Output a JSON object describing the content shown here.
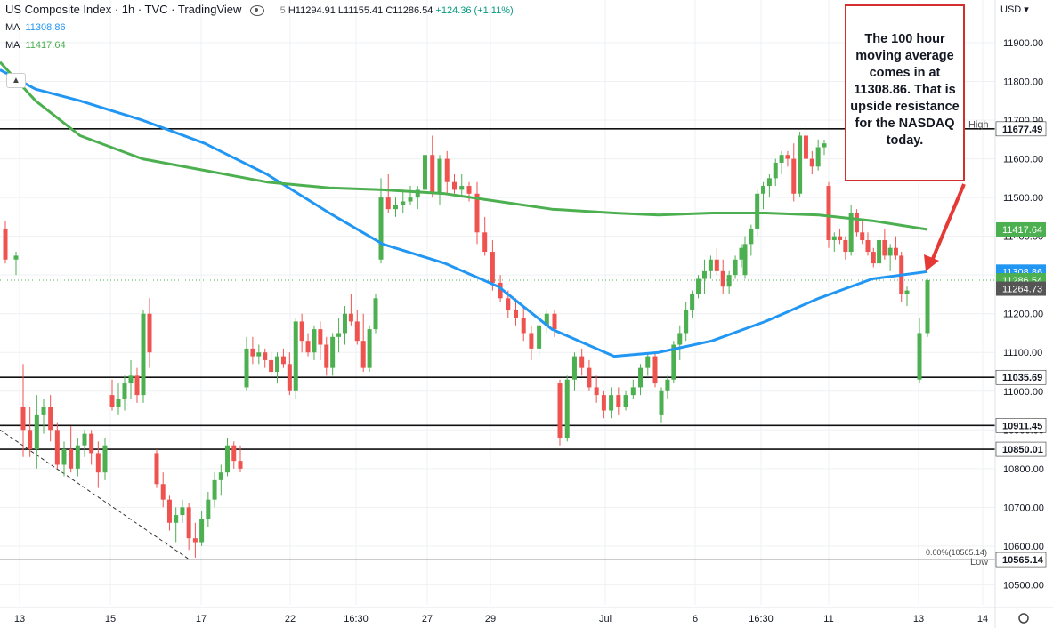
{
  "header": {
    "symbol": "US Composite Index · 1h · TVC · TradingView",
    "ohlc": "H11294.91 L11155.41 C11286.54",
    "change": "+124.36 (+1.11%)",
    "open_fragment": "5"
  },
  "indicators": [
    {
      "label": "MA",
      "value": "11308.86",
      "color": "#2196f3"
    },
    {
      "label": "MA",
      "value": "11417.64",
      "color": "#4caf50"
    }
  ],
  "currency": "USD",
  "annotation": "The 100 hour moving average comes in at 11308.86. That is upside resistance for the NASDAQ today.",
  "colors": {
    "up": "#4caf50",
    "down": "#ef5350",
    "ma100": "#2196f3",
    "ma200": "#4caf50",
    "arrow": "#e53935"
  },
  "chart_data": {
    "type": "candlestick",
    "title": "US Composite Index · 1h · TVC",
    "ylim": [
      10460,
      12000
    ],
    "y_ticks": [
      "10500.00",
      "10600.00",
      "10700.00",
      "10800.00",
      "10900.00",
      "11000.00",
      "11100.00",
      "11200.00",
      "11300.00",
      "11400.00",
      "11500.00",
      "11600.00",
      "11700.00",
      "11800.00",
      "11900.00"
    ],
    "x_ticks": [
      "13",
      "15",
      "17",
      "22",
      "16:30",
      "27",
      "29",
      "Jul",
      "6",
      "16:30",
      "11",
      "13",
      "14"
    ],
    "horizontal_levels": [
      {
        "value": 11677.49,
        "label": "11677.49"
      },
      {
        "value": 11035.69,
        "label": "11035.69"
      },
      {
        "value": 10911.45,
        "label": "10911.45"
      },
      {
        "value": 10850.01,
        "label": "10850.01"
      },
      {
        "value": 10565.14,
        "label": "10565.14"
      }
    ],
    "price_badges": [
      {
        "value": 11417.64,
        "label": "11417.64",
        "color": "#4caf50"
      },
      {
        "value": 11308.86,
        "label": "11308.86",
        "color": "#2196f3"
      },
      {
        "value": 11286.54,
        "label": "11286.54",
        "color": "#4caf50"
      },
      {
        "value": 11264.73,
        "label": "11264.73",
        "color": "#555555"
      }
    ],
    "high": {
      "label": "High",
      "value": "11689.70"
    },
    "low": {
      "label": "Low",
      "value": "10565.14"
    },
    "fib_label": "0.00%(10565.14)",
    "series": [
      {
        "name": "MA",
        "period_label": "100 hour moving average",
        "values": [
          11830,
          11780,
          11750,
          11700,
          11640,
          11560,
          11460,
          11380,
          11330,
          11270,
          11160,
          11090,
          11100,
          11130,
          11180,
          11240,
          11290,
          11308.86
        ]
      },
      {
        "name": "MA",
        "values": [
          11850,
          11750,
          11660,
          11600,
          11570,
          11540,
          11525,
          11520,
          11510,
          11490,
          11470,
          11460,
          11455,
          11460,
          11460,
          11455,
          11440,
          11417.64
        ]
      }
    ],
    "candles": [
      [
        11420,
        11440,
        11330,
        11340
      ],
      [
        11340,
        11360,
        11300,
        11350
      ],
      [
        10960,
        11070,
        10830,
        10900
      ],
      [
        10900,
        10960,
        10830,
        10850
      ],
      [
        10850,
        10990,
        10800,
        10940
      ],
      [
        10940,
        10980,
        10890,
        10960
      ],
      [
        10960,
        10990,
        10870,
        10900
      ],
      [
        10900,
        10920,
        10800,
        10810
      ],
      [
        10810,
        10870,
        10780,
        10850
      ],
      [
        10850,
        10910,
        10790,
        10800
      ],
      [
        10800,
        10880,
        10780,
        10860
      ],
      [
        10860,
        10900,
        10830,
        10890
      ],
      [
        10890,
        10900,
        10810,
        10840
      ],
      [
        10840,
        10870,
        10750,
        10790
      ],
      [
        10790,
        10880,
        10770,
        10860
      ],
      [
        10990,
        11030,
        10950,
        10960
      ],
      [
        10960,
        11020,
        10940,
        10980
      ],
      [
        10980,
        11040,
        10950,
        11020
      ],
      [
        11020,
        11080,
        10980,
        11040
      ],
      [
        11040,
        11060,
        10970,
        10990
      ],
      [
        10990,
        11210,
        10970,
        11200
      ],
      [
        11200,
        11240,
        11060,
        11100
      ],
      [
        10840,
        10850,
        10750,
        10760
      ],
      [
        10760,
        10790,
        10700,
        10720
      ],
      [
        10720,
        10730,
        10640,
        10660
      ],
      [
        10660,
        10700,
        10610,
        10680
      ],
      [
        10680,
        10720,
        10660,
        10700
      ],
      [
        10700,
        10710,
        10590,
        10620
      ],
      [
        10620,
        10660,
        10570,
        10610
      ],
      [
        10610,
        10690,
        10600,
        10670
      ],
      [
        10670,
        10740,
        10650,
        10720
      ],
      [
        10720,
        10790,
        10700,
        10770
      ],
      [
        10770,
        10810,
        10730,
        10790
      ],
      [
        10790,
        10880,
        10780,
        10860
      ],
      [
        10860,
        10870,
        10800,
        10820
      ],
      [
        10820,
        10860,
        10790,
        10800
      ],
      [
        11010,
        11140,
        11000,
        11110
      ],
      [
        11110,
        11140,
        11070,
        11090
      ],
      [
        11090,
        11120,
        11070,
        11100
      ],
      [
        11100,
        11110,
        11060,
        11080
      ],
      [
        11080,
        11100,
        11040,
        11050
      ],
      [
        11050,
        11100,
        11020,
        11090
      ],
      [
        11090,
        11110,
        11060,
        11070
      ],
      [
        11070,
        11100,
        10990,
        11000
      ],
      [
        11000,
        11190,
        10980,
        11180
      ],
      [
        11180,
        11200,
        11100,
        11130
      ],
      [
        11130,
        11150,
        11090,
        11100
      ],
      [
        11100,
        11170,
        11080,
        11160
      ],
      [
        11160,
        11180,
        11080,
        11120
      ],
      [
        11120,
        11140,
        11040,
        11060
      ],
      [
        11060,
        11150,
        11040,
        11140
      ],
      [
        11140,
        11190,
        11100,
        11150
      ],
      [
        11150,
        11220,
        11120,
        11200
      ],
      [
        11200,
        11250,
        11170,
        11180
      ],
      [
        11180,
        11210,
        11120,
        11130
      ],
      [
        11130,
        11200,
        11050,
        11060
      ],
      [
        11060,
        11170,
        11050,
        11160
      ],
      [
        11160,
        11250,
        11150,
        11240
      ],
      [
        11340,
        11550,
        11330,
        11500
      ],
      [
        11500,
        11560,
        11460,
        11470
      ],
      [
        11470,
        11500,
        11450,
        11480
      ],
      [
        11480,
        11520,
        11460,
        11490
      ],
      [
        11490,
        11530,
        11480,
        11500
      ],
      [
        11500,
        11530,
        11470,
        11520
      ],
      [
        11520,
        11640,
        11500,
        11610
      ],
      [
        11610,
        11660,
        11500,
        11510
      ],
      [
        11510,
        11610,
        11480,
        11600
      ],
      [
        11600,
        11620,
        11510,
        11540
      ],
      [
        11540,
        11560,
        11510,
        11520
      ],
      [
        11520,
        11560,
        11500,
        11530
      ],
      [
        11530,
        11540,
        11490,
        11510
      ],
      [
        11510,
        11540,
        11380,
        11410
      ],
      [
        11410,
        11450,
        11350,
        11360
      ],
      [
        11360,
        11390,
        11260,
        11280
      ],
      [
        11280,
        11300,
        11230,
        11240
      ],
      [
        11240,
        11260,
        11190,
        11210
      ],
      [
        11210,
        11240,
        11170,
        11190
      ],
      [
        11190,
        11220,
        11130,
        11150
      ],
      [
        11150,
        11170,
        11080,
        11110
      ],
      [
        11110,
        11200,
        11090,
        11170
      ],
      [
        11170,
        11210,
        11150,
        11200
      ],
      [
        11200,
        11210,
        11140,
        11160
      ],
      [
        11020,
        11030,
        10860,
        10880
      ],
      [
        10880,
        11040,
        10870,
        11030
      ],
      [
        11030,
        11100,
        11000,
        11090
      ],
      [
        11090,
        11110,
        11040,
        11060
      ],
      [
        11060,
        11080,
        11000,
        11010
      ],
      [
        11010,
        11040,
        10970,
        10990
      ],
      [
        10990,
        11000,
        10930,
        10950
      ],
      [
        10950,
        11010,
        10930,
        10990
      ],
      [
        10990,
        11010,
        10940,
        10960
      ],
      [
        10960,
        11000,
        10950,
        10990
      ],
      [
        10990,
        11030,
        10980,
        11010
      ],
      [
        11010,
        11070,
        10990,
        11060
      ],
      [
        11060,
        11100,
        11040,
        11090
      ],
      [
        11090,
        11100,
        11010,
        11020
      ],
      [
        10940,
        11010,
        10920,
        11000
      ],
      [
        11000,
        11040,
        10980,
        11030
      ],
      [
        11030,
        11130,
        11020,
        11120
      ],
      [
        11120,
        11170,
        11080,
        11150
      ],
      [
        11150,
        11230,
        11130,
        11210
      ],
      [
        11210,
        11260,
        11190,
        11250
      ],
      [
        11250,
        11300,
        11240,
        11290
      ],
      [
        11290,
        11340,
        11250,
        11310
      ],
      [
        11310,
        11350,
        11290,
        11340
      ],
      [
        11340,
        11370,
        11300,
        11310
      ],
      [
        11310,
        11340,
        11250,
        11270
      ],
      [
        11270,
        11310,
        11250,
        11300
      ],
      [
        11300,
        11350,
        11290,
        11340
      ],
      [
        11340,
        11380,
        11320,
        11370
      ],
      [
        11300,
        11400,
        11290,
        11380
      ],
      [
        11380,
        11430,
        11350,
        11420
      ],
      [
        11420,
        11520,
        11400,
        11510
      ],
      [
        11510,
        11540,
        11470,
        11530
      ],
      [
        11530,
        11560,
        11500,
        11550
      ],
      [
        11550,
        11600,
        11530,
        11590
      ],
      [
        11590,
        11620,
        11560,
        11610
      ],
      [
        11610,
        11620,
        11580,
        11600
      ],
      [
        11600,
        11640,
        11490,
        11510
      ],
      [
        11510,
        11670,
        11500,
        11660
      ],
      [
        11660,
        11690,
        11590,
        11600
      ],
      [
        11600,
        11620,
        11560,
        11580
      ],
      [
        11580,
        11650,
        11570,
        11630
      ],
      [
        11630,
        11650,
        11610,
        11640
      ],
      [
        11530,
        11540,
        11370,
        11390
      ],
      [
        11390,
        11410,
        11360,
        11400
      ],
      [
        11400,
        11420,
        11380,
        11390
      ],
      [
        11390,
        11400,
        11340,
        11360
      ],
      [
        11360,
        11480,
        11350,
        11460
      ],
      [
        11460,
        11470,
        11400,
        11410
      ],
      [
        11410,
        11440,
        11380,
        11390
      ],
      [
        11390,
        11410,
        11350,
        11360
      ],
      [
        11360,
        11370,
        11320,
        11330
      ],
      [
        11330,
        11400,
        11320,
        11390
      ],
      [
        11390,
        11420,
        11340,
        11350
      ],
      [
        11350,
        11380,
        11310,
        11370
      ],
      [
        11370,
        11400,
        11340,
        11350
      ],
      [
        11350,
        11360,
        11230,
        11250
      ],
      [
        11250,
        11270,
        11220,
        11260
      ],
      [
        11030,
        11190,
        11020,
        11150
      ],
      [
        11150,
        11290,
        11140,
        11286.54
      ]
    ]
  }
}
